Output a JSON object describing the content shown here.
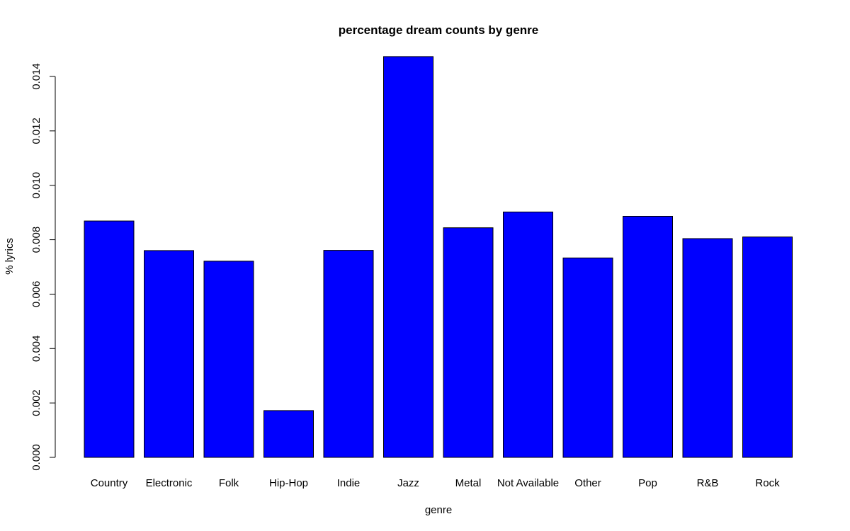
{
  "chart_data": {
    "type": "bar",
    "title": "percentage dream counts by genre",
    "xlabel": "genre",
    "ylabel": "% lyrics",
    "categories": [
      "Country",
      "Electronic",
      "Folk",
      "Hip-Hop",
      "Indie",
      "Jazz",
      "Metal",
      "Not Available",
      "Other",
      "Pop",
      "R&B",
      "Rock"
    ],
    "values": [
      0.00869,
      0.0076,
      0.00721,
      0.00172,
      0.00761,
      0.01473,
      0.00844,
      0.00902,
      0.00733,
      0.00886,
      0.00804,
      0.0081
    ],
    "yticks": [
      "0.000",
      "0.002",
      "0.004",
      "0.006",
      "0.008",
      "0.010",
      "0.012",
      "0.014"
    ],
    "ylim": [
      0,
      0.014
    ],
    "grid": false,
    "bar_color": "#0000ff",
    "border_color": "#000000"
  }
}
